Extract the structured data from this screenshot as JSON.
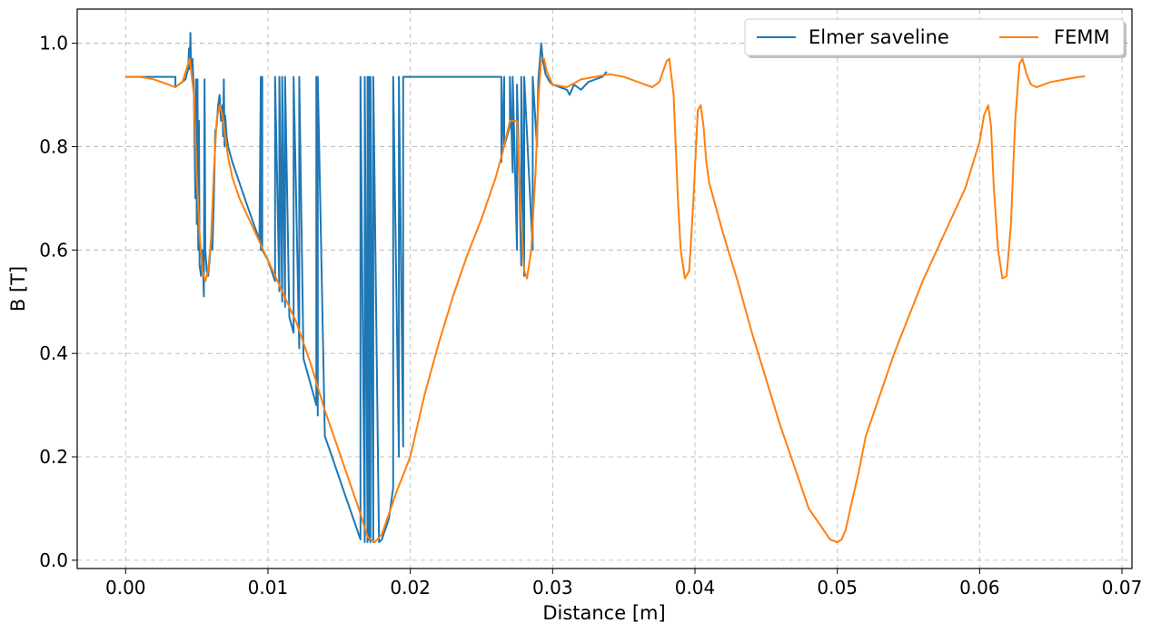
{
  "chart_data": {
    "type": "line",
    "xlabel": "Distance [m]",
    "ylabel": "B [T]",
    "xlim": [
      -0.0034,
      0.0707
    ],
    "ylim": [
      -0.016,
      1.066
    ],
    "xticks": [
      0.0,
      0.01,
      0.02,
      0.03,
      0.04,
      0.05,
      0.06,
      0.07
    ],
    "xtick_labels": [
      "0.00",
      "0.01",
      "0.02",
      "0.03",
      "0.04",
      "0.05",
      "0.06",
      "0.07"
    ],
    "yticks": [
      0.0,
      0.2,
      0.4,
      0.6,
      0.8,
      1.0
    ],
    "ytick_labels": [
      "0.0",
      "0.2",
      "0.4",
      "0.6",
      "0.8",
      "1.0"
    ],
    "grid": true,
    "legend_position": "top-right",
    "series": [
      {
        "name": "Elmer saveline",
        "color": "#1f77b4",
        "x": [
          0.0,
          0.0035,
          0.0035,
          0.0042,
          0.0044,
          0.00445,
          0.0045,
          0.00455,
          0.0046,
          0.0047,
          0.0048,
          0.0049,
          0.00495,
          0.005,
          0.00505,
          0.0051,
          0.00515,
          0.0052,
          0.0053,
          0.0054,
          0.0055,
          0.00555,
          0.0056,
          0.0057,
          0.0058,
          0.0059,
          0.006,
          0.0061,
          0.0062,
          0.0063,
          0.0064,
          0.0065,
          0.0066,
          0.0067,
          0.0068,
          0.00685,
          0.0069,
          0.00695,
          0.007,
          0.0071,
          0.0072,
          0.0075,
          0.008,
          0.0085,
          0.009,
          0.0094,
          0.0095,
          0.0095,
          0.0096,
          0.0096,
          0.01,
          0.0105,
          0.0105,
          0.0108,
          0.0108,
          0.011,
          0.011,
          0.0112,
          0.0112,
          0.0115,
          0.0118,
          0.0118,
          0.0122,
          0.0122,
          0.0125,
          0.013,
          0.0134,
          0.0134,
          0.0135,
          0.0135,
          0.014,
          0.0145,
          0.015,
          0.0155,
          0.016,
          0.0165,
          0.0165,
          0.0168,
          0.0168,
          0.017,
          0.017,
          0.0171,
          0.0171,
          0.0172,
          0.0172,
          0.0174,
          0.0174,
          0.0178,
          0.018,
          0.0185,
          0.0188,
          0.0188,
          0.0192,
          0.0192,
          0.0195,
          0.0195,
          0.0264,
          0.0264,
          0.0266,
          0.0266,
          0.027,
          0.027,
          0.0272,
          0.0272,
          0.0275,
          0.0275,
          0.0278,
          0.0278,
          0.028,
          0.028,
          0.0286,
          0.0286,
          0.0289,
          0.029,
          0.0292,
          0.0293,
          0.0295,
          0.0298,
          0.03,
          0.0305,
          0.031,
          0.0312,
          0.0315,
          0.032,
          0.0325,
          0.033,
          0.0335,
          0.0338
        ],
        "y": [
          0.935,
          0.935,
          0.915,
          0.93,
          0.95,
          0.99,
          0.95,
          1.02,
          0.95,
          0.97,
          0.9,
          0.7,
          0.93,
          0.65,
          0.93,
          0.6,
          0.85,
          0.57,
          0.55,
          0.6,
          0.51,
          0.93,
          0.6,
          0.56,
          0.55,
          0.58,
          0.62,
          0.6,
          0.7,
          0.83,
          0.84,
          0.88,
          0.9,
          0.85,
          0.88,
          0.82,
          0.93,
          0.8,
          0.86,
          0.82,
          0.8,
          0.77,
          0.73,
          0.69,
          0.65,
          0.62,
          0.935,
          0.6,
          0.935,
          0.6,
          0.58,
          0.54,
          0.935,
          0.52,
          0.935,
          0.5,
          0.935,
          0.49,
          0.935,
          0.47,
          0.44,
          0.935,
          0.41,
          0.935,
          0.39,
          0.34,
          0.3,
          0.935,
          0.28,
          0.935,
          0.24,
          0.2,
          0.16,
          0.12,
          0.08,
          0.04,
          0.935,
          0.035,
          0.935,
          0.035,
          0.935,
          0.04,
          0.935,
          0.035,
          0.935,
          0.035,
          0.935,
          0.035,
          0.04,
          0.08,
          0.14,
          0.935,
          0.2,
          0.935,
          0.22,
          0.935,
          0.935,
          0.77,
          0.935,
          0.8,
          0.84,
          0.935,
          0.75,
          0.935,
          0.6,
          0.92,
          0.57,
          0.935,
          0.55,
          0.935,
          0.6,
          0.935,
          0.8,
          0.93,
          1.0,
          0.97,
          0.94,
          0.925,
          0.92,
          0.915,
          0.91,
          0.9,
          0.92,
          0.91,
          0.925,
          0.93,
          0.935,
          0.945
        ]
      },
      {
        "name": "FEMM",
        "color": "#ff7f0e",
        "x": [
          0.0,
          0.001,
          0.002,
          0.003,
          0.0035,
          0.004,
          0.0045,
          0.0048,
          0.005,
          0.0052,
          0.0054,
          0.0056,
          0.0058,
          0.006,
          0.0062,
          0.0064,
          0.0066,
          0.0068,
          0.007,
          0.0072,
          0.0075,
          0.008,
          0.009,
          0.01,
          0.011,
          0.012,
          0.013,
          0.014,
          0.015,
          0.016,
          0.0165,
          0.017,
          0.0175,
          0.018,
          0.019,
          0.02,
          0.021,
          0.022,
          0.023,
          0.024,
          0.025,
          0.026,
          0.0265,
          0.027,
          0.0275,
          0.0278,
          0.028,
          0.0282,
          0.0285,
          0.0288,
          0.029,
          0.0292,
          0.0294,
          0.0296,
          0.03,
          0.031,
          0.032,
          0.033,
          0.034,
          0.035,
          0.036,
          0.037,
          0.0375,
          0.038,
          0.0382,
          0.0385,
          0.0388,
          0.039,
          0.0393,
          0.0396,
          0.0399,
          0.0402,
          0.0404,
          0.0406,
          0.0408,
          0.041,
          0.0415,
          0.042,
          0.043,
          0.044,
          0.045,
          0.046,
          0.047,
          0.048,
          0.049,
          0.0495,
          0.05,
          0.0503,
          0.0506,
          0.051,
          0.0515,
          0.052,
          0.053,
          0.054,
          0.055,
          0.056,
          0.057,
          0.058,
          0.059,
          0.06,
          0.0603,
          0.0606,
          0.0608,
          0.061,
          0.0613,
          0.0616,
          0.0619,
          0.0622,
          0.0625,
          0.0628,
          0.063,
          0.0633,
          0.0636,
          0.064,
          0.0645,
          0.065,
          0.066,
          0.067,
          0.0674
        ],
        "y": [
          0.935,
          0.935,
          0.93,
          0.92,
          0.915,
          0.925,
          0.97,
          0.9,
          0.74,
          0.63,
          0.56,
          0.54,
          0.56,
          0.62,
          0.75,
          0.85,
          0.88,
          0.86,
          0.82,
          0.78,
          0.74,
          0.7,
          0.64,
          0.58,
          0.52,
          0.46,
          0.38,
          0.29,
          0.21,
          0.13,
          0.09,
          0.045,
          0.035,
          0.05,
          0.13,
          0.2,
          0.32,
          0.42,
          0.51,
          0.59,
          0.66,
          0.74,
          0.79,
          0.85,
          0.85,
          0.65,
          0.56,
          0.545,
          0.6,
          0.75,
          0.89,
          0.97,
          0.97,
          0.945,
          0.92,
          0.915,
          0.93,
          0.935,
          0.94,
          0.935,
          0.925,
          0.915,
          0.925,
          0.965,
          0.97,
          0.9,
          0.7,
          0.6,
          0.545,
          0.56,
          0.7,
          0.87,
          0.88,
          0.84,
          0.77,
          0.73,
          0.68,
          0.63,
          0.54,
          0.44,
          0.35,
          0.26,
          0.18,
          0.1,
          0.06,
          0.04,
          0.035,
          0.04,
          0.06,
          0.11,
          0.17,
          0.24,
          0.32,
          0.4,
          0.47,
          0.54,
          0.6,
          0.66,
          0.72,
          0.81,
          0.86,
          0.88,
          0.84,
          0.72,
          0.6,
          0.545,
          0.55,
          0.65,
          0.85,
          0.96,
          0.97,
          0.94,
          0.92,
          0.915,
          0.92,
          0.925,
          0.93,
          0.935,
          0.936
        ]
      }
    ]
  }
}
